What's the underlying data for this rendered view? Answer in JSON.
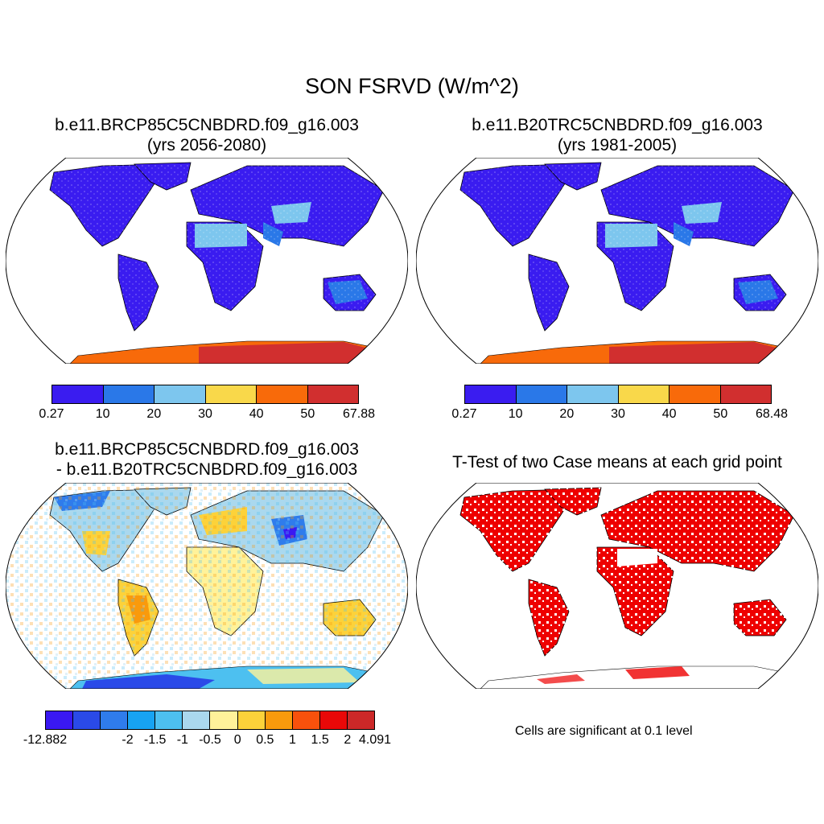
{
  "title": "SON FSRVD (W/m^2)",
  "panels": [
    {
      "title_line1": "b.e11.BRCP85C5CNBDRD.f09_g16.003",
      "title_line2": "(yrs 2056-2080)"
    },
    {
      "title_line1": "b.e11.B20TRC5CNBDRD.f09_g16.003",
      "title_line2": "(yrs 1981-2005)"
    },
    {
      "title_line1": "b.e11.BRCP85C5CNBDRD.f09_g16.003",
      "title_line2": "- b.e11.B20TRC5CNBDRD.f09_g16.003"
    },
    {
      "title_line1": "T-Test of two Case means at each grid point"
    }
  ],
  "colorbars": [
    {
      "colors": [
        "#3a1cf0",
        "#2a78e8",
        "#7dc6ee",
        "#f9d84a",
        "#f86a0a",
        "#d12f2f"
      ],
      "labels": [
        "0.27",
        "10",
        "20",
        "30",
        "40",
        "50",
        "67.88"
      ]
    },
    {
      "colors": [
        "#3a1cf0",
        "#2a78e8",
        "#7dc6ee",
        "#f9d84a",
        "#f86a0a",
        "#d12f2f"
      ],
      "labels": [
        "0.27",
        "10",
        "20",
        "30",
        "40",
        "50",
        "68.48"
      ]
    },
    {
      "colors": [
        "#3a18f2",
        "#2a4ae8",
        "#2f7cec",
        "#17a3f2",
        "#4dc0f0",
        "#aad8ee",
        "#fff29a",
        "#fcd23a",
        "#f99a0c",
        "#f8510c",
        "#e90808",
        "#cc2828"
      ],
      "labels": [
        "-12.882",
        "-2",
        "-1.5",
        "-1",
        "-0.5",
        "0",
        "0.5",
        "1",
        "1.5",
        "2",
        "4.091"
      ]
    }
  ],
  "significance_note": "Cells are significant at 0.1 level"
}
